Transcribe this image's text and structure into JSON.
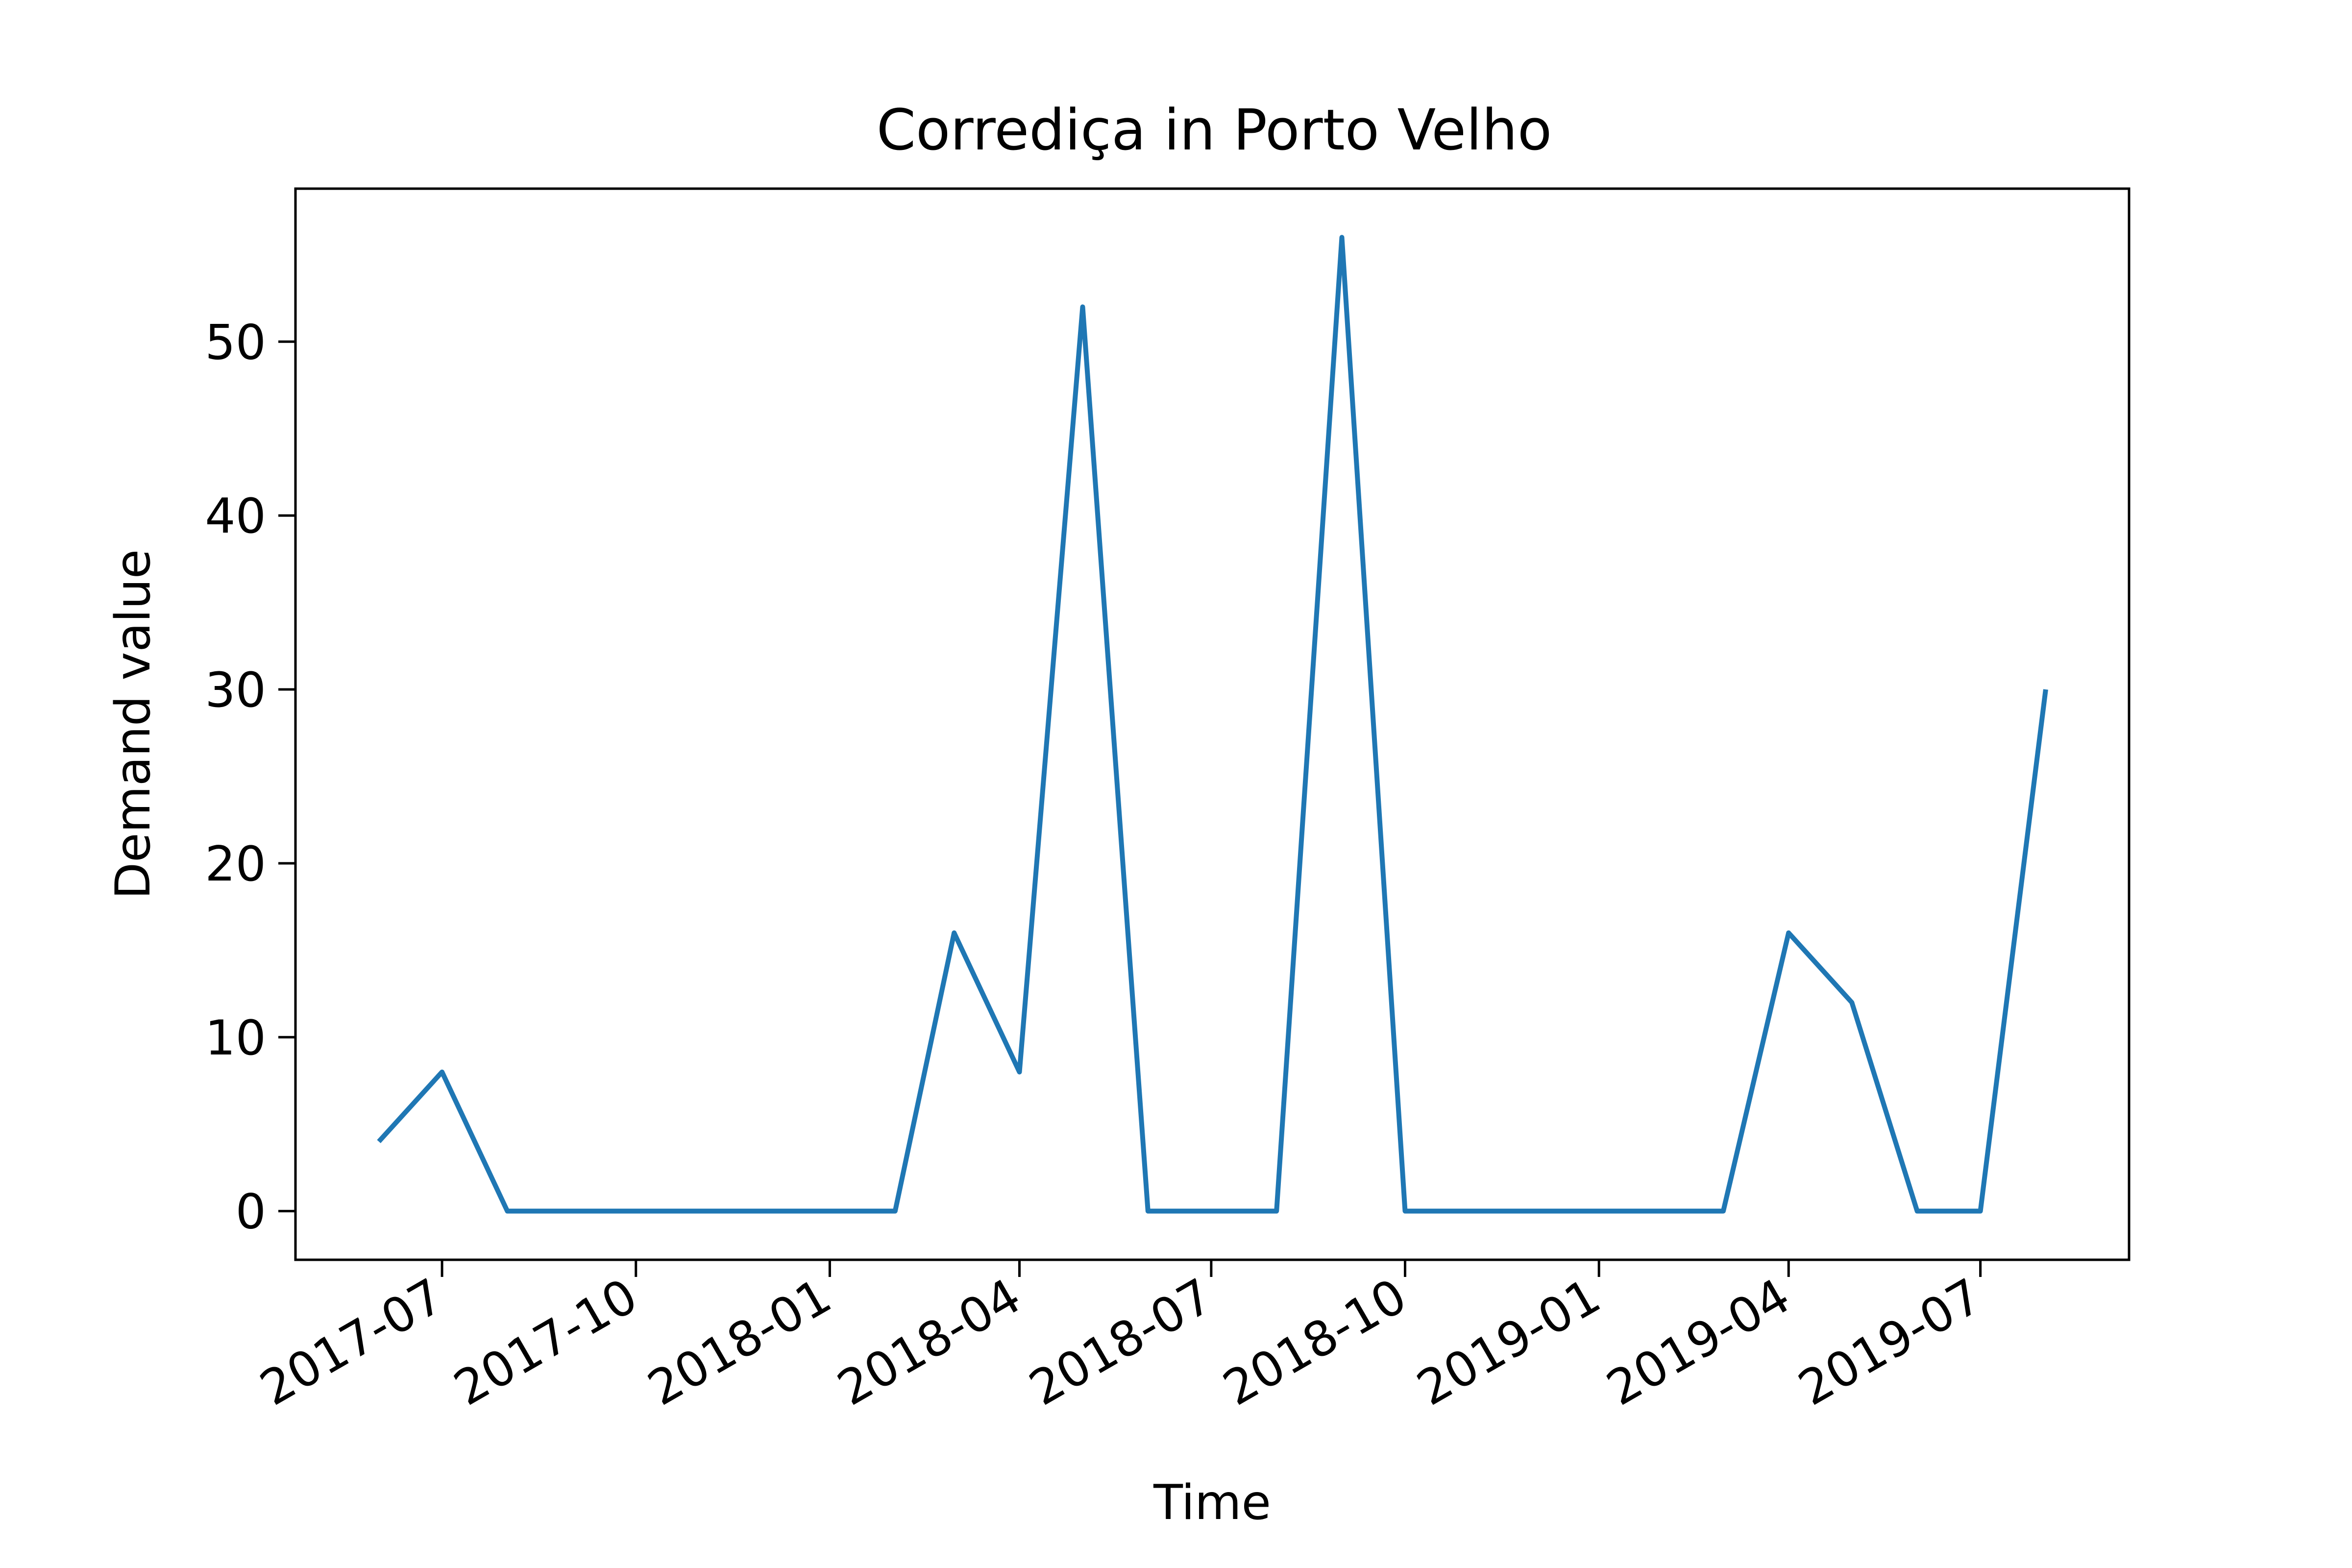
{
  "chart_data": {
    "type": "line",
    "title": "Corrediça in Porto Velho",
    "xlabel": "Time",
    "ylabel": "Demand value",
    "x": [
      "2017-06",
      "2017-07",
      "2017-08",
      "2017-09",
      "2017-10",
      "2017-11",
      "2017-12",
      "2018-01",
      "2018-02",
      "2018-03",
      "2018-04",
      "2018-05",
      "2018-06",
      "2018-07",
      "2018-08",
      "2018-09",
      "2018-10",
      "2018-11",
      "2018-12",
      "2019-01",
      "2019-02",
      "2019-03",
      "2019-04",
      "2019-05",
      "2019-06",
      "2019-07",
      "2019-08"
    ],
    "series": [
      {
        "values": [
          4,
          8,
          0,
          0,
          0,
          0,
          0,
          0,
          0,
          16,
          8,
          52,
          0,
          0,
          0,
          56,
          0,
          0,
          0,
          0,
          0,
          0,
          16,
          12,
          0,
          0,
          30
        ],
        "color": "#1f77b4"
      }
    ],
    "xticks": [
      "2017-07",
      "2017-10",
      "2018-01",
      "2018-04",
      "2018-07",
      "2018-10",
      "2019-01",
      "2019-04",
      "2019-07"
    ],
    "yticks": [
      0,
      10,
      20,
      30,
      40,
      50
    ],
    "ylim": [
      -2.8,
      58.8
    ],
    "xlim": [
      "2017-05",
      "2019-09"
    ],
    "grid": false
  }
}
